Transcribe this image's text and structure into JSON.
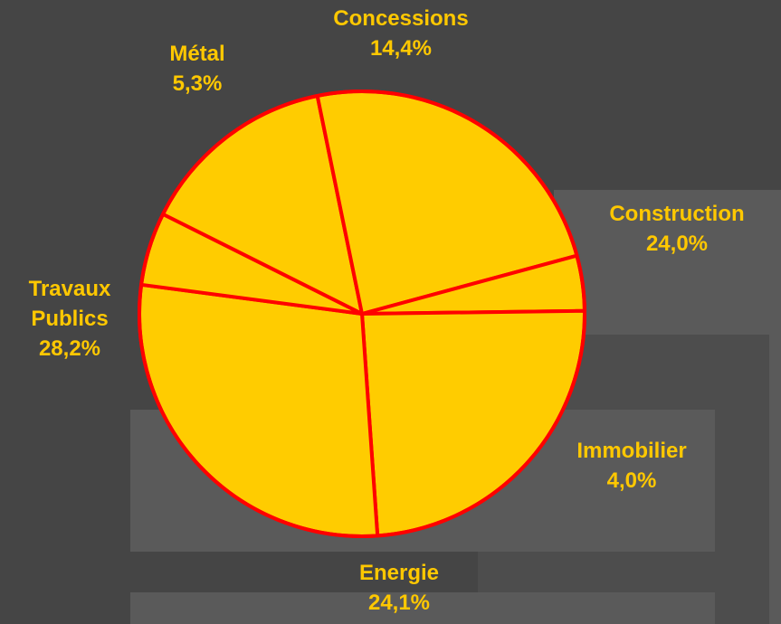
{
  "chart_data": {
    "type": "pie",
    "title": "",
    "slices": [
      {
        "name": "Concessions",
        "label_lines": [
          "Concessions"
        ],
        "value_label": "14,4%",
        "value": 14.4
      },
      {
        "name": "Construction",
        "label_lines": [
          "Construction"
        ],
        "value_label": "24,0%",
        "value": 24.0
      },
      {
        "name": "Immobilier",
        "label_lines": [
          "Immobilier"
        ],
        "value_label": "4,0%",
        "value": 4.0
      },
      {
        "name": "Energie",
        "label_lines": [
          "Energie"
        ],
        "value_label": "24,1%",
        "value": 24.1
      },
      {
        "name": "Travaux Publics",
        "label_lines": [
          "Travaux",
          "Publics"
        ],
        "value_label": "28,2%",
        "value": 28.2
      },
      {
        "name": "Métal",
        "label_lines": [
          "Métal"
        ],
        "value_label": "5,3%",
        "value": 5.3
      }
    ],
    "colors": {
      "fill": "#ffcc00",
      "stroke": "#ff0000",
      "label": "#ffc800",
      "background": "#454545"
    }
  }
}
